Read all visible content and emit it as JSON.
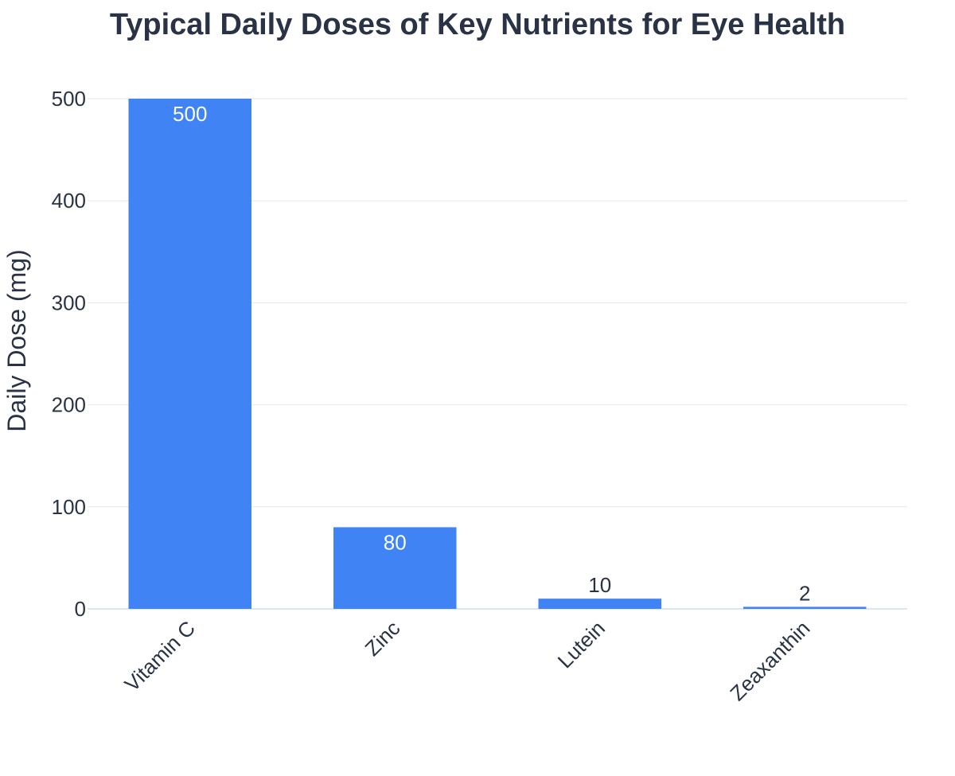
{
  "chart_data": {
    "type": "bar",
    "title": "Typical Daily Doses of Key Nutrients for Eye Health",
    "xlabel": "",
    "ylabel": "Daily Dose (mg)",
    "categories": [
      "Vitamin C",
      "Zinc",
      "Lutein",
      "Zeaxanthin"
    ],
    "values": [
      500,
      80,
      10,
      2
    ],
    "data_labels": [
      "500",
      "80",
      "10",
      "2"
    ],
    "ylim": [
      0,
      500
    ],
    "yticks": [
      0,
      100,
      200,
      300,
      400,
      500
    ],
    "grid": true,
    "legend": "none",
    "colors": {
      "bar": "#3f83f4",
      "grid": "#e3e8ef",
      "baseline": "#dbe6f3",
      "text": "#2a3345",
      "label_inside": "#ffffff"
    }
  }
}
